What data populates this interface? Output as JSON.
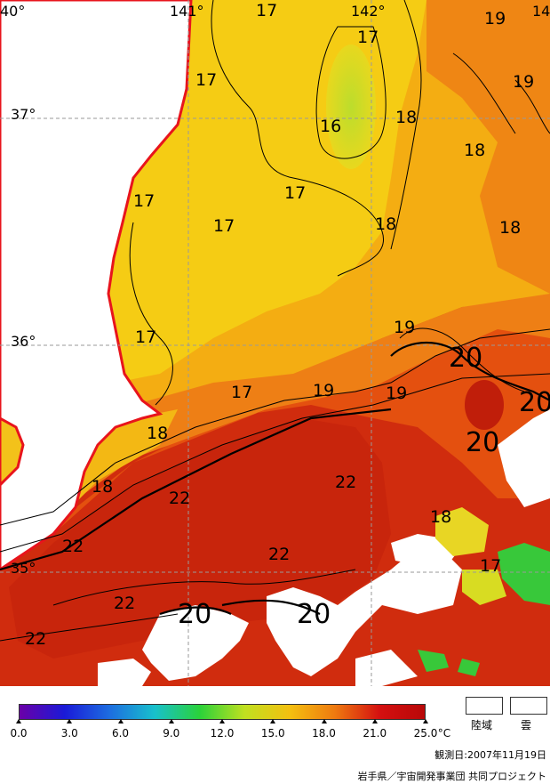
{
  "map": {
    "coordinate_labels": {
      "lon_140": "40°",
      "lon_141": "141°",
      "lon_142": "142°",
      "lon_143": "14",
      "lat_37": "37°",
      "lat_36": "36°",
      "lat_35": "35°"
    },
    "contour_labels": [
      "17",
      "17",
      "17",
      "17",
      "17",
      "17",
      "17",
      "17",
      "17",
      "16",
      "18",
      "18",
      "18",
      "18",
      "18",
      "18",
      "18",
      "19",
      "19",
      "19",
      "19",
      "19",
      "20",
      "20",
      "20",
      "20",
      "20",
      "22",
      "22",
      "22",
      "22",
      "22",
      "22",
      "17"
    ],
    "colors": {
      "land": "#ffffff",
      "coast": "#e8141c",
      "t16": "#c4e22a",
      "t17": "#f6cf14",
      "t18": "#f4b012",
      "t19": "#ef7d14",
      "t20": "#e65012",
      "t22": "#cf2a0e",
      "green": "#38c83a"
    }
  },
  "colorbar": {
    "ticks": [
      "0.0",
      "3.0",
      "6.0",
      "9.0",
      "12.0",
      "15.0",
      "18.0",
      "21.0",
      "25.0"
    ],
    "unit": "°C",
    "stops": [
      "#6a00a8",
      "#1a1ad8",
      "#1d6de0",
      "#18c0cc",
      "#2ad23a",
      "#c0e020",
      "#f4c010",
      "#ee7a10",
      "#d41010",
      "#b80808"
    ]
  },
  "legend": {
    "land_label": "陸域",
    "cloud_label": "雲"
  },
  "footer": {
    "observation_date": "観測日:2007年11月19日",
    "credit": "岩手県／宇宙開発事業団 共同プロジェクト"
  }
}
